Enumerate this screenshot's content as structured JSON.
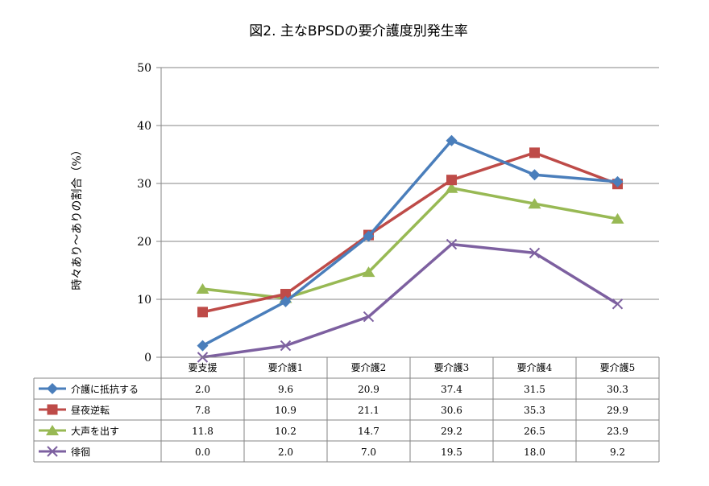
{
  "chart_data": {
    "type": "line",
    "title": "図2. 主なBPSDの要介護度別発生率",
    "ylabel": "時々あり～ありの割合（%）",
    "xlabel": "",
    "ylim": [
      0,
      50
    ],
    "yticks": [
      0,
      10,
      20,
      30,
      40,
      50
    ],
    "grid": true,
    "legend": "data-table-left",
    "categories": [
      "要支援",
      "要介護1",
      "要介護2",
      "要介護3",
      "要介護4",
      "要介護5"
    ],
    "series": [
      {
        "name": "介護に抵抗する",
        "color": "#4a7ebb",
        "marker": "diamond",
        "values": [
          2.0,
          9.6,
          20.9,
          37.4,
          31.5,
          30.3
        ],
        "labels": [
          "2.0",
          "9.6",
          "20.9",
          "37.4",
          "31.5",
          "30.3"
        ]
      },
      {
        "name": "昼夜逆転",
        "color": "#be4b48",
        "marker": "square",
        "values": [
          7.8,
          10.9,
          21.1,
          30.6,
          35.3,
          29.9
        ],
        "labels": [
          "7.8",
          "10.9",
          "21.1",
          "30.6",
          "35.3",
          "29.9"
        ]
      },
      {
        "name": "大声を出す",
        "color": "#98b954",
        "marker": "triangle",
        "values": [
          11.8,
          10.2,
          14.7,
          29.2,
          26.5,
          23.9
        ],
        "labels": [
          "11.8",
          "10.2",
          "14.7",
          "29.2",
          "26.5",
          "23.9"
        ]
      },
      {
        "name": "徘徊",
        "color": "#7d60a0",
        "marker": "x",
        "values": [
          0.0,
          2.0,
          7.0,
          19.5,
          18.0,
          9.2
        ],
        "labels": [
          "0.0",
          "2.0",
          "7.0",
          "19.5",
          "18.0",
          "9.2"
        ]
      }
    ]
  }
}
